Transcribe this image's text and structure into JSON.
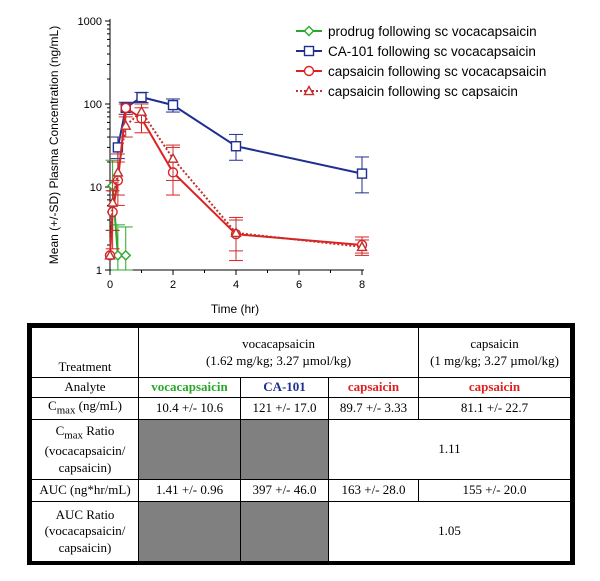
{
  "chart_data": {
    "type": "line",
    "xlabel": "Time (hr)",
    "ylabel": "Mean (+/-SD) Plasma Concentration (ng/mL)",
    "xlim": [
      0,
      8
    ],
    "ylim": [
      1,
      1000
    ],
    "yscale": "log",
    "x_ticks": [
      "0",
      "2",
      "4",
      "6",
      "8"
    ],
    "y_ticks": [
      "1",
      "10",
      "100",
      "1000"
    ],
    "legend_position": "top-right",
    "series": [
      {
        "name": "prodrug following sc vocacapsaicin",
        "color": "#2aa82a",
        "marker": "diamond",
        "dash": false,
        "points": [
          {
            "x": 0.083,
            "y": 10.4,
            "lo": 3.0,
            "hi": 21
          },
          {
            "x": 0.25,
            "y": 1.5,
            "lo": 1.0,
            "hi": 3.5
          },
          {
            "x": 0.5,
            "y": 1.5,
            "lo": 1.0,
            "hi": 3.3
          }
        ]
      },
      {
        "name": "CA-101 following sc vocacapsaicin",
        "color": "#1f2f8f",
        "marker": "square",
        "dash": false,
        "points": [
          {
            "x": 0.25,
            "y": 30,
            "lo": 22,
            "hi": 40
          },
          {
            "x": 0.5,
            "y": 90,
            "lo": 75,
            "hi": 105
          },
          {
            "x": 1,
            "y": 121,
            "lo": 104,
            "hi": 138
          },
          {
            "x": 2,
            "y": 97,
            "lo": 80,
            "hi": 115
          },
          {
            "x": 4,
            "y": 31,
            "lo": 21,
            "hi": 43
          },
          {
            "x": 8,
            "y": 14.5,
            "lo": 8.5,
            "hi": 23
          }
        ]
      },
      {
        "name": "capsaicin following sc vocacapsaicin",
        "color": "#e02020",
        "marker": "circle",
        "dash": false,
        "points": [
          {
            "x": 0,
            "y": 1.5,
            "lo": 1.5,
            "hi": 1.5
          },
          {
            "x": 0.083,
            "y": 5,
            "lo": 1.8,
            "hi": 9
          },
          {
            "x": 0.25,
            "y": 12,
            "lo": 6,
            "hi": 20
          },
          {
            "x": 0.5,
            "y": 89.7,
            "lo": 70,
            "hi": 100
          },
          {
            "x": 1,
            "y": 67,
            "lo": 45,
            "hi": 90
          },
          {
            "x": 2,
            "y": 15,
            "lo": 8,
            "hi": 30
          },
          {
            "x": 4,
            "y": 2.7,
            "lo": 1.3,
            "hi": 4.3
          },
          {
            "x": 8,
            "y": 2.0,
            "lo": 1.5,
            "hi": 2.5
          }
        ]
      },
      {
        "name": "capsaicin following sc capsaicin",
        "color": "#c03030",
        "marker": "triangle",
        "dash": true,
        "points": [
          {
            "x": 0,
            "y": 1.5,
            "lo": 1.5,
            "hi": 1.5
          },
          {
            "x": 0.083,
            "y": 6.5,
            "lo": 3,
            "hi": 12
          },
          {
            "x": 0.25,
            "y": 15,
            "lo": 8,
            "hi": 25
          },
          {
            "x": 0.5,
            "y": 55,
            "lo": 40,
            "hi": 75
          },
          {
            "x": 1,
            "y": 81.1,
            "lo": 60,
            "hi": 100
          },
          {
            "x": 2,
            "y": 22,
            "lo": 12,
            "hi": 32
          },
          {
            "x": 4,
            "y": 2.8,
            "lo": 1.7,
            "hi": 4.0
          },
          {
            "x": 8,
            "y": 1.9,
            "lo": 1.6,
            "hi": 2.3
          }
        ]
      }
    ]
  },
  "table": {
    "treatment_label": "Treatment",
    "voca_title": "vocacapsaicin",
    "voca_dose": "(1.62 mg/kg; 3.27 µmol/kg)",
    "cap_title": "capsaicin",
    "cap_dose": "(1 mg/kg; 3.27 µmol/kg)",
    "analyte_label": "Analyte",
    "analytes": [
      "vocacapsaicin",
      "CA-101",
      "capsaicin",
      "capsaicin"
    ],
    "cmax_label_main": "C",
    "cmax_label_sub": "max",
    "cmax_label_unit": " (ng/mL)",
    "cmax_values": [
      "10.4 +/- 10.6",
      "121 +/- 17.0",
      "89.7 +/- 3.33",
      "81.1 +/- 22.7"
    ],
    "cmax_ratio_label_line2": " Ratio",
    "cmax_ratio_label_line3": "(vocacapsaicin/",
    "cmax_ratio_label_line4": "capsaicin)",
    "cmax_ratio": "1.11",
    "auc_label": "AUC (ng*hr/mL)",
    "auc_values": [
      "1.41 +/- 0.96",
      "397 +/- 46.0",
      "163 +/- 28.0",
      "155 +/- 20.0"
    ],
    "auc_ratio_label_line1": "AUC Ratio",
    "auc_ratio_label_line2": "(vocacapsaicin/",
    "auc_ratio_label_line3": "capsaicin)",
    "auc_ratio": "1.05"
  }
}
